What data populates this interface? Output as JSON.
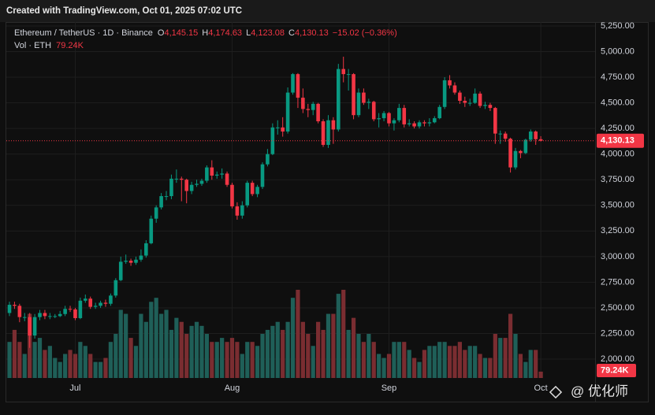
{
  "chart_data": {
    "type": "candlestick",
    "source": "Created with TradingView.com, Oct 01, 2025 07:02 UTC",
    "title": "Ethereum / TetherUS · 1D · Binance",
    "ohlc_legend": [
      {
        "key": "O",
        "text": "4,145.15"
      },
      {
        "key": "H",
        "text": "4,174.63"
      },
      {
        "key": "L",
        "text": "4,123.08"
      },
      {
        "key": "C",
        "text": "4,130.13"
      }
    ],
    "change": "−15.02 (−0.36%)",
    "last_price_label": "4,130.13",
    "watermark": "@ 优化师",
    "up_color": "#089981",
    "down_color": "#f23645",
    "volume_up_color": "#1f5f58",
    "volume_down_color": "#7a2d31",
    "grid": true,
    "categories": [
      null,
      null,
      null,
      null,
      null,
      null,
      null,
      null,
      null,
      null,
      null,
      null,
      null,
      "Jul",
      null,
      null,
      null,
      null,
      null,
      null,
      null,
      null,
      null,
      null,
      null,
      null,
      null,
      null,
      null,
      null,
      null,
      null,
      null,
      null,
      null,
      null,
      null,
      null,
      null,
      null,
      null,
      null,
      null,
      null,
      "Aug",
      null,
      null,
      null,
      null,
      null,
      null,
      null,
      null,
      null,
      null,
      null,
      null,
      null,
      null,
      null,
      null,
      null,
      null,
      null,
      null,
      null,
      null,
      null,
      null,
      null,
      null,
      null,
      null,
      null,
      null,
      "Sep",
      null,
      null,
      null,
      null,
      null,
      null,
      null,
      null,
      null,
      null,
      null,
      null,
      null,
      null,
      null,
      null,
      null,
      null,
      null,
      null,
      null,
      null,
      null,
      null,
      null,
      null,
      null,
      null,
      null,
      "Oct"
    ],
    "open": [
      2450,
      2530,
      2520,
      2410,
      2410,
      2230,
      2410,
      2450,
      2420,
      2420,
      2420,
      2440,
      2490,
      2485,
      2400,
      2570,
      2590,
      2510,
      2520,
      2550,
      2540,
      2620,
      2770,
      2950,
      2960,
      2940,
      2970,
      3010,
      3130,
      3370,
      3480,
      3590,
      3590,
      3760,
      3760,
      3750,
      3640,
      3700,
      3710,
      3740,
      3870,
      3790,
      3800,
      3810,
      3700,
      3490,
      3400,
      3500,
      3720,
      3610,
      3680,
      3900,
      4000,
      4260,
      4260,
      4220,
      4600,
      4780,
      4550,
      4440,
      4430,
      4490,
      4320,
      4090,
      4330,
      4240,
      4830,
      4780,
      4780,
      4380,
      4600,
      4500,
      4510,
      4340,
      4350,
      4400,
      4300,
      4330,
      4450,
      4290,
      4300,
      4270,
      4310,
      4300,
      4310,
      4350,
      4460,
      4720,
      4670,
      4600,
      4520,
      4500,
      4500,
      4590,
      4470,
      4480,
      4450,
      4200,
      4200,
      4150,
      3870,
      4030,
      4010,
      4140,
      4220,
      4145.15
    ],
    "high": [
      2560,
      2560,
      2540,
      2450,
      2450,
      2440,
      2480,
      2480,
      2450,
      2440,
      2470,
      2520,
      2520,
      2500,
      2600,
      2630,
      2610,
      2550,
      2570,
      2580,
      2640,
      2790,
      3000,
      3020,
      2980,
      3000,
      3070,
      3160,
      3400,
      3500,
      3620,
      3640,
      3800,
      3850,
      3780,
      3760,
      3730,
      3750,
      3760,
      3890,
      3940,
      3830,
      3860,
      3830,
      3720,
      3530,
      3540,
      3740,
      3740,
      3700,
      3920,
      4050,
      4300,
      4330,
      4360,
      4650,
      4790,
      4790,
      4640,
      4490,
      4510,
      4500,
      4340,
      4380,
      4360,
      4880,
      4950,
      4830,
      4790,
      4640,
      4640,
      4540,
      4520,
      4400,
      4420,
      4410,
      4350,
      4490,
      4480,
      4340,
      4320,
      4330,
      4330,
      4350,
      4370,
      4480,
      4750,
      4770,
      4700,
      4620,
      4560,
      4540,
      4640,
      4610,
      4510,
      4500,
      4460,
      4230,
      4220,
      4160,
      4060,
      4040,
      4150,
      4240,
      4230,
      4174.63
    ],
    "low": [
      2420,
      2490,
      2360,
      2370,
      2110,
      2200,
      2380,
      2390,
      2390,
      2400,
      2410,
      2420,
      2460,
      2380,
      2390,
      2550,
      2490,
      2490,
      2500,
      2510,
      2520,
      2600,
      2760,
      2930,
      2910,
      2920,
      2950,
      2990,
      3120,
      3330,
      3460,
      3550,
      3560,
      3720,
      3540,
      3520,
      3610,
      3680,
      3690,
      3720,
      3750,
      3760,
      3760,
      3680,
      3470,
      3360,
      3370,
      3480,
      3590,
      3580,
      3660,
      3880,
      3990,
      4190,
      4170,
      4200,
      4580,
      4450,
      4400,
      4360,
      4380,
      4300,
      4070,
      4060,
      4100,
      4220,
      4700,
      4620,
      4340,
      4360,
      4480,
      4440,
      4320,
      4260,
      4320,
      4270,
      4230,
      4310,
      4260,
      4270,
      4250,
      4250,
      4270,
      4270,
      4300,
      4340,
      4440,
      4640,
      4580,
      4490,
      4460,
      4470,
      4490,
      4450,
      4440,
      4420,
      4100,
      4100,
      4120,
      3820,
      3850,
      3960,
      4000,
      4120,
      4090,
      4123.08
    ],
    "close": [
      2530,
      2520,
      2410,
      2410,
      2230,
      2410,
      2450,
      2420,
      2420,
      2420,
      2440,
      2490,
      2485,
      2400,
      2570,
      2590,
      2510,
      2520,
      2550,
      2540,
      2620,
      2770,
      2950,
      2960,
      2940,
      2970,
      3010,
      3130,
      3370,
      3480,
      3590,
      3590,
      3760,
      3760,
      3750,
      3640,
      3700,
      3710,
      3740,
      3870,
      3790,
      3800,
      3810,
      3700,
      3490,
      3400,
      3500,
      3720,
      3610,
      3680,
      3900,
      4000,
      4260,
      4260,
      4220,
      4600,
      4780,
      4550,
      4440,
      4430,
      4490,
      4320,
      4090,
      4330,
      4240,
      4830,
      4780,
      4780,
      4380,
      4600,
      4500,
      4510,
      4340,
      4350,
      4400,
      4300,
      4330,
      4450,
      4290,
      4300,
      4270,
      4310,
      4300,
      4310,
      4350,
      4460,
      4720,
      4670,
      4600,
      4520,
      4500,
      4500,
      4590,
      4470,
      4480,
      4450,
      4200,
      4200,
      4150,
      3870,
      4030,
      4010,
      4140,
      4220,
      4145.15,
      4130.13
    ],
    "volume": {
      "name": "Vol · ETH",
      "values": [
        450000,
        600000,
        450000,
        300000,
        800000,
        450000,
        500000,
        350000,
        400000,
        250000,
        200000,
        300000,
        350000,
        300000,
        450000,
        400000,
        300000,
        200000,
        200000,
        250000,
        450000,
        550000,
        850000,
        800000,
        500000,
        400000,
        800000,
        700000,
        950000,
        1000000,
        800000,
        850000,
        600000,
        750000,
        700000,
        550000,
        650000,
        700000,
        650000,
        550000,
        450000,
        450000,
        500000,
        450000,
        500000,
        450000,
        300000,
        450000,
        450000,
        400000,
        550000,
        600000,
        650000,
        700000,
        600000,
        700000,
        1000000,
        1100000,
        700000,
        550000,
        400000,
        700000,
        600000,
        800000,
        800000,
        1050000,
        1100000,
        600000,
        750000,
        550000,
        450000,
        550000,
        450000,
        300000,
        250000,
        300000,
        450000,
        450000,
        450000,
        350000,
        250000,
        200000,
        350000,
        400000,
        400000,
        450000,
        450000,
        400000,
        400000,
        450000,
        350000,
        400000,
        400000,
        300000,
        250000,
        250000,
        550000,
        500000,
        500000,
        800000,
        550000,
        300000,
        200000,
        350000,
        350000,
        79240
      ],
      "value_labels": [
        null,
        null,
        null,
        null,
        null,
        null,
        null,
        null,
        null,
        null,
        null,
        null,
        null,
        null,
        null,
        null,
        null,
        null,
        null,
        null,
        null,
        null,
        null,
        null,
        null,
        null,
        null,
        null,
        null,
        null,
        null,
        null,
        null,
        null,
        null,
        null,
        null,
        null,
        null,
        null,
        null,
        null,
        null,
        null,
        null,
        null,
        null,
        null,
        null,
        null,
        null,
        null,
        null,
        null,
        null,
        null,
        null,
        null,
        null,
        null,
        null,
        null,
        null,
        null,
        null,
        null,
        null,
        null,
        null,
        null,
        null,
        null,
        null,
        null,
        null,
        null,
        null,
        null,
        null,
        null,
        null,
        null,
        null,
        null,
        null,
        null,
        null,
        null,
        null,
        null,
        null,
        null,
        null,
        null,
        null,
        null,
        null,
        null,
        null,
        null,
        null,
        null,
        null,
        null,
        null,
        "79.24K"
      ]
    },
    "ylim": [
      1816,
      5288
    ],
    "yticks": [
      {
        "value": 2000,
        "label": "2,000.00"
      },
      {
        "value": 2250,
        "label": "2,250.00"
      },
      {
        "value": 2500,
        "label": "2,500.00"
      },
      {
        "value": 2750,
        "label": "2,750.00"
      },
      {
        "value": 3000,
        "label": "3,000.00"
      },
      {
        "value": 3250,
        "label": "3,250.00"
      },
      {
        "value": 3500,
        "label": "3,500.00"
      },
      {
        "value": 3750,
        "label": "3,750.00"
      },
      {
        "value": 4000,
        "label": "4,000.00"
      },
      {
        "value": 4250,
        "label": "4,250.00"
      },
      {
        "value": 4500,
        "label": "4,500.00"
      },
      {
        "value": 4750,
        "label": "4,750.00"
      },
      {
        "value": 5000,
        "label": "5,000.00"
      },
      {
        "value": 5250,
        "label": "5,250.00"
      }
    ]
  }
}
